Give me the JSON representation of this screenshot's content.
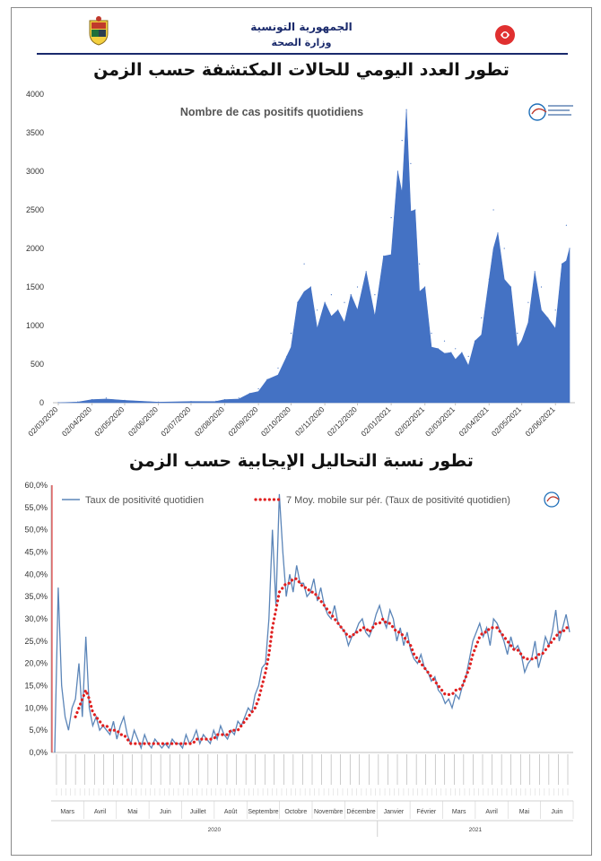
{
  "header": {
    "line1": "الجمهورية التونسية",
    "line2": "وزارة الصحة"
  },
  "titles": {
    "top": "تطور العدد اليومي للحالات المكتشفة حسب الزمن",
    "bottom": "تطور نسبة التحاليل الإيجابية حسب الزمن"
  },
  "chart_data": [
    {
      "type": "area",
      "title": "Nombre de cas positifs quotidiens",
      "color": "#4472c4",
      "ylim": [
        0,
        4000
      ],
      "yticks": [
        "0",
        "500",
        "1000",
        "1500",
        "2000",
        "2500",
        "3000",
        "3500",
        "4000"
      ],
      "xticks": [
        "02/03/2020",
        "02/04/2020",
        "02/05/2020",
        "02/06/2020",
        "02/07/2020",
        "02/08/2020",
        "02/09/2020",
        "02/10/2020",
        "02/11/2020",
        "02/12/2020",
        "02/01/2021",
        "02/02/2021",
        "02/03/2021",
        "02/04/2021",
        "02/05/2021",
        "02/06/2021"
      ],
      "x": [
        "2020-03-02",
        "2020-03-20",
        "2020-04-02",
        "2020-04-15",
        "2020-05-02",
        "2020-06-02",
        "2020-07-02",
        "2020-07-25",
        "2020-08-02",
        "2020-08-15",
        "2020-08-25",
        "2020-09-02",
        "2020-09-10",
        "2020-09-20",
        "2020-09-28",
        "2020-10-02",
        "2020-10-08",
        "2020-10-14",
        "2020-10-20",
        "2020-10-26",
        "2020-11-02",
        "2020-11-08",
        "2020-11-14",
        "2020-11-20",
        "2020-11-26",
        "2020-12-02",
        "2020-12-10",
        "2020-12-18",
        "2020-12-26",
        "2021-01-02",
        "2021-01-08",
        "2021-01-12",
        "2021-01-16",
        "2021-01-20",
        "2021-01-24",
        "2021-01-28",
        "2021-02-02",
        "2021-02-08",
        "2021-02-14",
        "2021-02-20",
        "2021-02-26",
        "2021-03-02",
        "2021-03-08",
        "2021-03-14",
        "2021-03-20",
        "2021-03-26",
        "2021-04-02",
        "2021-04-06",
        "2021-04-10",
        "2021-04-16",
        "2021-04-22",
        "2021-04-28",
        "2021-05-02",
        "2021-05-08",
        "2021-05-14",
        "2021-05-20",
        "2021-05-26",
        "2021-06-02",
        "2021-06-08",
        "2021-06-12",
        "2021-06-15"
      ],
      "values": [
        0,
        10,
        40,
        60,
        30,
        8,
        15,
        20,
        40,
        60,
        120,
        180,
        300,
        450,
        600,
        900,
        1300,
        1800,
        1500,
        1200,
        1300,
        1400,
        1200,
        1300,
        1400,
        1500,
        1700,
        1400,
        1900,
        2400,
        3000,
        3400,
        3800,
        3100,
        2500,
        1800,
        1500,
        900,
        700,
        800,
        650,
        700,
        650,
        600,
        800,
        1100,
        1600,
        2500,
        2200,
        2000,
        1500,
        900,
        800,
        1300,
        1700,
        1500,
        1100,
        1200,
        1800,
        2300,
        2000
      ],
      "xlabel": "",
      "ylabel": ""
    },
    {
      "type": "line",
      "ylim": [
        0,
        60
      ],
      "yticks": [
        "0,0%",
        "5,0%",
        "10,0%",
        "15,0%",
        "20,0%",
        "25,0%",
        "30,0%",
        "35,0%",
        "40,0%",
        "45,0%",
        "50,0%",
        "55,0%",
        "60,0%"
      ],
      "months": [
        "Mars",
        "Avril",
        "Mai",
        "Juin",
        "Juillet",
        "Août",
        "Septembre",
        "Octobre",
        "Novembre",
        "Décembre",
        "Janvier",
        "Février",
        "Mars",
        "Avril",
        "Mai",
        "Juin"
      ],
      "years": [
        "2020",
        "2021"
      ],
      "series": [
        {
          "name": "Taux de positivité quotidien",
          "color": "#5b85b8",
          "style": "solid",
          "values": [
            0,
            37,
            15,
            8,
            5,
            10,
            12,
            20,
            8,
            26,
            10,
            6,
            8,
            5,
            6,
            5,
            4,
            7,
            3,
            6,
            8,
            4,
            2,
            5,
            3,
            1,
            4,
            2,
            1,
            3,
            2,
            1,
            2,
            1,
            3,
            2,
            2,
            1,
            4,
            2,
            3,
            5,
            2,
            4,
            3,
            2,
            5,
            3,
            6,
            4,
            3,
            5,
            4,
            7,
            6,
            8,
            10,
            9,
            13,
            15,
            19,
            20,
            30,
            50,
            33,
            58,
            45,
            35,
            40,
            36,
            42,
            38,
            38,
            35,
            36,
            39,
            34,
            37,
            33,
            31,
            30,
            33,
            29,
            28,
            27,
            24,
            26,
            27,
            29,
            30,
            27,
            26,
            28,
            31,
            33,
            30,
            28,
            32,
            30,
            25,
            28,
            24,
            27,
            23,
            21,
            20,
            22,
            19,
            18,
            16,
            17,
            14,
            13,
            11,
            12,
            10,
            13,
            12,
            15,
            17,
            21,
            25,
            27,
            29,
            26,
            28,
            24,
            30,
            29,
            27,
            25,
            22,
            26,
            23,
            24,
            22,
            18,
            20,
            21,
            25,
            19,
            22,
            26,
            24,
            27,
            32,
            25,
            28,
            31,
            27
          ]
        },
        {
          "name": "7 Moy. mobile sur pér. (Taux de positivité quotidien)",
          "color": "#e02020",
          "style": "dotted",
          "values": [
            null,
            null,
            null,
            null,
            null,
            null,
            8,
            10,
            12,
            14,
            12,
            9,
            8,
            7,
            6,
            6,
            5,
            5,
            5,
            4,
            4,
            3,
            2,
            2,
            2,
            2,
            2,
            2,
            2,
            2,
            2,
            2,
            2,
            2,
            2,
            2,
            2,
            2,
            2,
            2,
            2,
            3,
            3,
            3,
            3,
            3,
            3,
            4,
            4,
            4,
            4,
            5,
            5,
            5,
            6,
            7,
            8,
            9,
            10,
            12,
            15,
            18,
            22,
            28,
            32,
            36,
            37,
            38,
            38,
            39,
            39,
            38,
            37,
            37,
            36,
            36,
            35,
            34,
            33,
            32,
            31,
            30,
            29,
            28,
            27,
            26,
            26,
            27,
            27,
            28,
            28,
            27,
            28,
            29,
            29,
            30,
            29,
            29,
            28,
            27,
            27,
            26,
            25,
            24,
            22,
            21,
            20,
            19,
            18,
            17,
            16,
            15,
            14,
            13,
            13,
            13,
            14,
            14,
            15,
            17,
            19,
            22,
            24,
            26,
            27,
            27,
            28,
            28,
            28,
            27,
            26,
            25,
            24,
            23,
            23,
            22,
            21,
            21,
            21,
            21,
            22,
            22,
            23,
            24,
            25,
            26,
            27,
            27,
            28,
            28
          ]
        }
      ],
      "xlabel": "",
      "ylabel": ""
    }
  ]
}
